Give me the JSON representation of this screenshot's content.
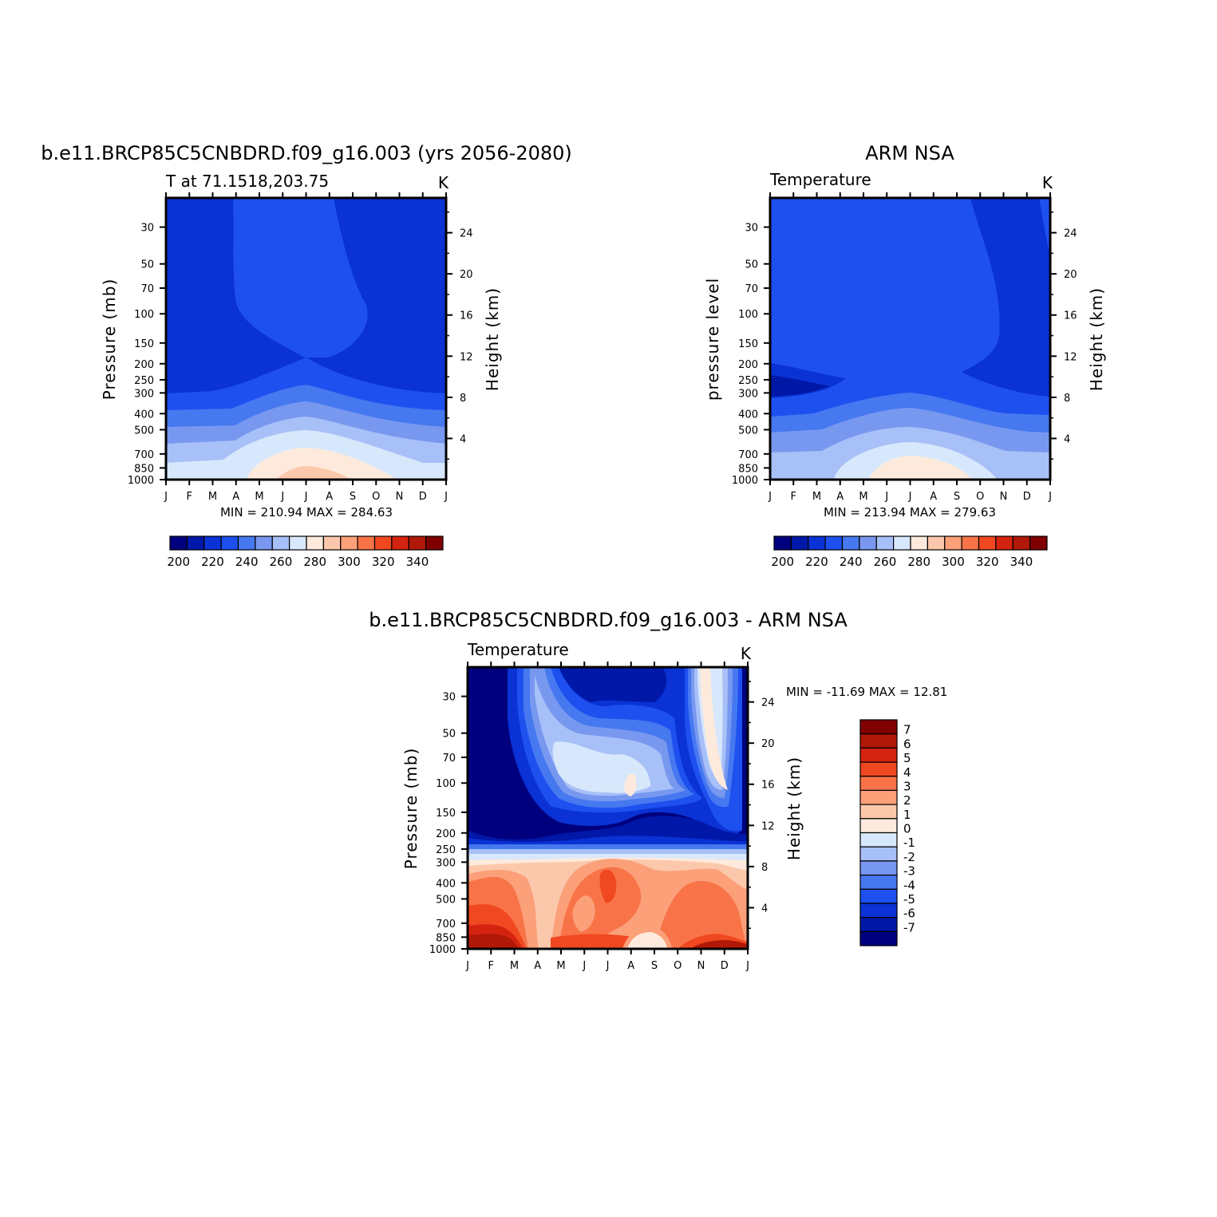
{
  "chart_data": [
    {
      "type": "heatmap",
      "title": "b.e11.BRCP85C5CNBDRD.f09_g16.003 (yrs 2056-2080)",
      "subtitle_left": "T at 71.1518,203.75",
      "subtitle_right": "K",
      "ylabel": "Pressure (mb)",
      "y2label": "Height (km)",
      "x_ticks": [
        "J",
        "F",
        "M",
        "A",
        "M",
        "J",
        "J",
        "A",
        "S",
        "O",
        "N",
        "D",
        "J"
      ],
      "y_ticks": [
        "30",
        "50",
        "70",
        "100",
        "150",
        "200",
        "250",
        "300",
        "400",
        "500",
        "700",
        "850",
        "1000"
      ],
      "y2_ticks": [
        "24",
        "20",
        "16",
        "12",
        "8",
        "4"
      ],
      "ylim": [
        1000,
        20
      ],
      "log_scale_y": true,
      "min_text": "MIN = 210.94 MAX = 284.63",
      "min": 210.94,
      "max": 284.63,
      "colorbar": {
        "orientation": "horizontal",
        "labels": [
          "200",
          "220",
          "240",
          "260",
          "280",
          "300",
          "320",
          "340"
        ],
        "colors": [
          "#00007f",
          "#0018a8",
          "#0a32d4",
          "#1e50f0",
          "#4678f0",
          "#7898f0",
          "#a8c0f8",
          "#d8e8fc",
          "#fdeadc",
          "#fcc8ac",
          "#fca07a",
          "#f87448",
          "#f04820",
          "#d42410",
          "#b01808",
          "#800000"
        ]
      }
    },
    {
      "type": "heatmap",
      "title": "ARM NSA",
      "subtitle_left": "Temperature",
      "subtitle_right": "K",
      "ylabel": "pressure level",
      "y2label": "Height (km)",
      "x_ticks": [
        "J",
        "F",
        "M",
        "A",
        "M",
        "J",
        "J",
        "A",
        "S",
        "O",
        "N",
        "D",
        "J"
      ],
      "y_ticks": [
        "30",
        "50",
        "70",
        "100",
        "150",
        "200",
        "250",
        "300",
        "400",
        "500",
        "700",
        "850",
        "1000"
      ],
      "y2_ticks": [
        "24",
        "20",
        "16",
        "12",
        "8",
        "4"
      ],
      "ylim": [
        1000,
        20
      ],
      "log_scale_y": true,
      "min_text": "MIN = 213.94 MAX = 279.63",
      "min": 213.94,
      "max": 279.63,
      "colorbar": {
        "orientation": "horizontal",
        "labels": [
          "200",
          "220",
          "240",
          "260",
          "280",
          "300",
          "320",
          "340"
        ],
        "colors": [
          "#00007f",
          "#0018a8",
          "#0a32d4",
          "#1e50f0",
          "#4678f0",
          "#7898f0",
          "#a8c0f8",
          "#d8e8fc",
          "#fdeadc",
          "#fcc8ac",
          "#fca07a",
          "#f87448",
          "#f04820",
          "#d42410",
          "#b01808",
          "#800000"
        ]
      }
    },
    {
      "type": "heatmap",
      "title": "b.e11.BRCP85C5CNBDRD.f09_g16.003 - ARM NSA",
      "subtitle_left": "Temperature",
      "subtitle_right": "K",
      "ylabel": "Pressure (mb)",
      "y2label": "Height (km)",
      "x_ticks": [
        "J",
        "F",
        "M",
        "A",
        "M",
        "J",
        "J",
        "A",
        "S",
        "O",
        "N",
        "D",
        "J"
      ],
      "y_ticks": [
        "30",
        "50",
        "70",
        "100",
        "150",
        "200",
        "250",
        "300",
        "400",
        "500",
        "700",
        "850",
        "1000"
      ],
      "y2_ticks": [
        "24",
        "20",
        "16",
        "12",
        "8",
        "4"
      ],
      "ylim": [
        1000,
        20
      ],
      "log_scale_y": true,
      "min_text": "MIN = -11.69 MAX =  12.81",
      "min": -11.69,
      "max": 12.81,
      "colorbar": {
        "orientation": "vertical",
        "labels": [
          "7",
          "6",
          "5",
          "4",
          "3",
          "2",
          "1",
          "0",
          "-1",
          "-2",
          "-3",
          "-4",
          "-5",
          "-6",
          "-7"
        ],
        "colors": [
          "#800000",
          "#b01808",
          "#d42410",
          "#f04820",
          "#f87448",
          "#fca07a",
          "#fcc8ac",
          "#fdeadc",
          "#d8e8fc",
          "#a8c0f8",
          "#7898f0",
          "#4678f0",
          "#1e50f0",
          "#0a32d4",
          "#0018a8",
          "#00007f"
        ]
      }
    }
  ]
}
